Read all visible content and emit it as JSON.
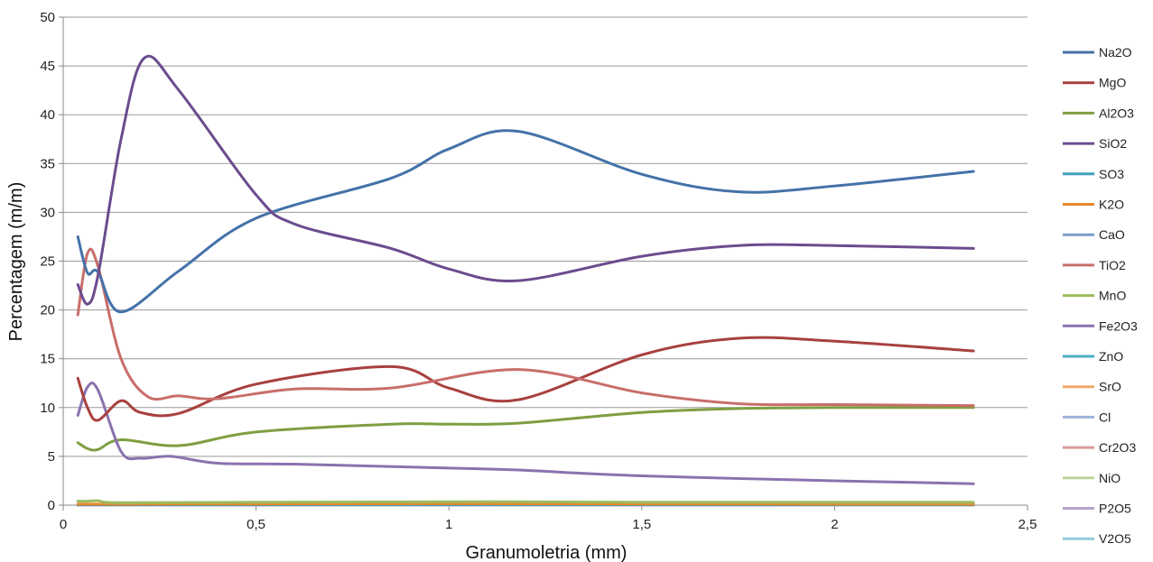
{
  "chart_data": {
    "type": "line",
    "xlabel": "Granumoletria (mm)",
    "ylabel": "Percentagem (m/m)",
    "xlim": [
      0,
      2.5
    ],
    "ylim": [
      0,
      50
    ],
    "x_ticks": [
      "0",
      "0,5",
      "1",
      "1,5",
      "2",
      "2,5"
    ],
    "y_ticks": [
      "0",
      "5",
      "10",
      "15",
      "20",
      "25",
      "30",
      "35",
      "40",
      "45",
      "50"
    ],
    "grid": "horizontal",
    "legend_position": "right",
    "series": [
      {
        "name": "Na2O",
        "color": "#4472A8",
        "x": [
          0.038,
          0.063,
          0.09,
          0.15,
          0.3,
          0.5,
          0.85,
          1.0,
          1.18,
          1.5,
          1.75,
          2.0,
          2.36
        ],
        "y": [
          27.5,
          23.8,
          23.9,
          19.8,
          24.0,
          29.4,
          33.5,
          36.5,
          38.3,
          33.9,
          32.1,
          32.7,
          34.2
        ]
      },
      {
        "name": "MgO",
        "color": "#A8413E",
        "x": [
          0.038,
          0.063,
          0.09,
          0.15,
          0.2,
          0.3,
          0.5,
          0.85,
          1.0,
          1.18,
          1.5,
          1.75,
          2.0,
          2.36
        ],
        "y": [
          13.0,
          10.0,
          8.7,
          10.7,
          9.5,
          9.4,
          12.4,
          14.2,
          12.0,
          10.8,
          15.4,
          17.1,
          16.8,
          15.8
        ]
      },
      {
        "name": "Al2O3",
        "color": "#7E9E42",
        "x": [
          0.038,
          0.063,
          0.09,
          0.15,
          0.3,
          0.5,
          0.85,
          1.0,
          1.18,
          1.5,
          1.75,
          2.0,
          2.36
        ],
        "y": [
          6.4,
          5.8,
          5.7,
          6.7,
          6.1,
          7.5,
          8.3,
          8.3,
          8.4,
          9.5,
          9.9,
          10.0,
          10.0
        ]
      },
      {
        "name": "SiO2",
        "color": "#6B4C8E",
        "x": [
          0.038,
          0.063,
          0.09,
          0.15,
          0.21,
          0.3,
          0.5,
          0.6,
          0.85,
          1.0,
          1.18,
          1.5,
          1.75,
          2.0,
          2.36
        ],
        "y": [
          22.6,
          20.6,
          23.5,
          37.5,
          45.8,
          42.5,
          31.8,
          28.8,
          26.3,
          24.2,
          23.0,
          25.5,
          26.6,
          26.6,
          26.3
        ]
      },
      {
        "name": "SO3",
        "color": "#3FA0B8",
        "x": [
          0.038,
          0.5,
          1.0,
          1.5,
          2.0,
          2.36
        ],
        "y": [
          0.05,
          0.05,
          0.05,
          0.05,
          0.05,
          0.05
        ]
      },
      {
        "name": "K2O",
        "color": "#E8862E",
        "x": [
          0.038,
          0.5,
          1.0,
          1.5,
          2.0,
          2.36
        ],
        "y": [
          0.1,
          0.12,
          0.15,
          0.12,
          0.1,
          0.1
        ]
      },
      {
        "name": "CaO",
        "color": "#7A9CC8",
        "x": [
          0.038,
          0.5,
          1.0,
          1.5,
          2.0,
          2.36
        ],
        "y": [
          0.0,
          0.0,
          0.0,
          0.0,
          0.0,
          0.0
        ]
      },
      {
        "name": "TiO2",
        "color": "#C86E6A",
        "x": [
          0.038,
          0.063,
          0.09,
          0.15,
          0.22,
          0.3,
          0.4,
          0.6,
          0.85,
          1.18,
          1.5,
          1.75,
          2.0,
          2.36
        ],
        "y": [
          19.5,
          25.8,
          24.5,
          15.0,
          11.1,
          11.2,
          10.9,
          11.9,
          12.0,
          13.9,
          11.5,
          10.4,
          10.3,
          10.2
        ]
      },
      {
        "name": "MnO",
        "color": "#9CBC5E",
        "x": [
          0.038,
          0.063,
          0.09,
          0.15,
          0.5,
          1.0,
          1.18,
          1.5,
          2.0,
          2.36
        ],
        "y": [
          0.4,
          0.4,
          0.45,
          0.25,
          0.3,
          0.35,
          0.35,
          0.3,
          0.3,
          0.3
        ]
      },
      {
        "name": "Fe2O3",
        "color": "#8A72AE",
        "x": [
          0.038,
          0.063,
          0.09,
          0.15,
          0.2,
          0.28,
          0.4,
          0.6,
          1.0,
          1.18,
          1.5,
          2.0,
          2.36
        ],
        "y": [
          9.2,
          12.1,
          11.8,
          5.5,
          4.8,
          5.0,
          4.3,
          4.2,
          3.8,
          3.6,
          3.0,
          2.5,
          2.2
        ]
      },
      {
        "name": "ZnO",
        "color": "#4BAFC4",
        "x": [
          0.038,
          0.5,
          1.0,
          1.5,
          2.0,
          2.36
        ],
        "y": [
          0.02,
          0.02,
          0.02,
          0.02,
          0.02,
          0.02
        ]
      },
      {
        "name": "SrO",
        "color": "#F0A868",
        "x": [
          0.038,
          0.5,
          1.0,
          1.5,
          2.0,
          2.36
        ],
        "y": [
          0.02,
          0.02,
          0.02,
          0.02,
          0.02,
          0.02
        ]
      },
      {
        "name": "Cl",
        "color": "#9DB4D8",
        "x": [
          0.038,
          0.5,
          1.0,
          1.5,
          2.0,
          2.36
        ],
        "y": [
          0.03,
          0.03,
          0.03,
          0.03,
          0.03,
          0.03
        ]
      },
      {
        "name": "Cr2O3",
        "color": "#D89A98",
        "x": [
          0.038,
          0.5,
          1.0,
          1.5,
          2.0,
          2.36
        ],
        "y": [
          0.02,
          0.02,
          0.02,
          0.02,
          0.02,
          0.02
        ]
      },
      {
        "name": "NiO",
        "color": "#BCD398",
        "x": [
          0.038,
          0.5,
          1.0,
          1.5,
          2.0,
          2.36
        ],
        "y": [
          0.01,
          0.01,
          0.01,
          0.01,
          0.01,
          0.01
        ]
      },
      {
        "name": "P2O5",
        "color": "#B5A6CC",
        "x": [
          0.038,
          0.5,
          1.0,
          1.5,
          2.0,
          2.36
        ],
        "y": [
          0.03,
          0.03,
          0.03,
          0.03,
          0.03,
          0.03
        ]
      },
      {
        "name": "V2O5",
        "color": "#92CCDC",
        "x": [
          0.038,
          0.5,
          1.0,
          1.5,
          2.0,
          2.36
        ],
        "y": [
          0.01,
          0.01,
          0.01,
          0.01,
          0.01,
          0.01
        ]
      }
    ]
  }
}
